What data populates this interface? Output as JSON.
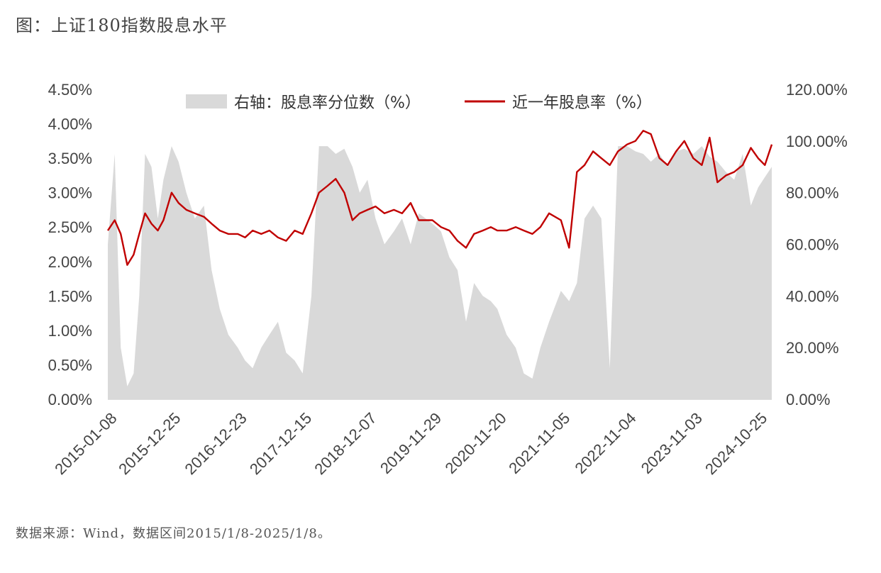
{
  "title": "图：上证180指数股息水平",
  "source": "数据来源：Wind，数据区间2015/1/8-2025/1/8。",
  "colors": {
    "area": "#d9d9d9",
    "line": "#c00000",
    "axis": "#bfbfbf"
  },
  "chart_data": {
    "type": "line",
    "title": "图：上证180指数股息水平",
    "x_start": "2015-01-08",
    "x_end": "2025-01-08",
    "x_ticks": [
      "2015-01-08",
      "2015-12-25",
      "2016-12-23",
      "2017-12-15",
      "2018-12-07",
      "2019-11-29",
      "2020-11-20",
      "2021-11-05",
      "2022-11-04",
      "2023-11-03",
      "2024-10-25"
    ],
    "y_left": {
      "ticks": [
        "0.00%",
        "0.50%",
        "1.00%",
        "1.50%",
        "2.00%",
        "2.50%",
        "3.00%",
        "3.50%",
        "4.00%",
        "4.50%"
      ],
      "ylim": [
        0,
        4.5
      ]
    },
    "y_right": {
      "ticks": [
        "0.00%",
        "20.00%",
        "40.00%",
        "60.00%",
        "80.00%",
        "100.00%",
        "120.00%"
      ],
      "ylim": [
        0,
        120
      ]
    },
    "legend_position": "top",
    "series": [
      {
        "name": "右轴：股息率分位数（%）",
        "kind": "area",
        "axis": "right",
        "x": [
          "2015-01-08",
          "2015-02-15",
          "2015-03-20",
          "2015-04-25",
          "2015-05-30",
          "2015-06-30",
          "2015-08-01",
          "2015-09-05",
          "2015-10-10",
          "2015-11-10",
          "2015-12-25",
          "2016-02-01",
          "2016-03-15",
          "2016-05-01",
          "2016-06-20",
          "2016-08-01",
          "2016-09-15",
          "2016-11-01",
          "2016-12-23",
          "2017-02-01",
          "2017-03-15",
          "2017-05-01",
          "2017-06-15",
          "2017-08-01",
          "2017-09-15",
          "2017-11-01",
          "2017-12-15",
          "2018-02-01",
          "2018-03-15",
          "2018-05-01",
          "2018-06-15",
          "2018-08-01",
          "2018-09-15",
          "2018-10-25",
          "2018-12-07",
          "2019-01-20",
          "2019-03-10",
          "2019-05-01",
          "2019-06-15",
          "2019-08-01",
          "2019-09-15",
          "2019-11-29",
          "2020-01-15",
          "2020-03-01",
          "2020-04-15",
          "2020-06-01",
          "2020-07-15",
          "2020-09-01",
          "2020-10-15",
          "2020-11-20",
          "2021-01-10",
          "2021-03-01",
          "2021-04-15",
          "2021-06-01",
          "2021-07-15",
          "2021-09-01",
          "2021-11-05",
          "2021-12-20",
          "2022-02-01",
          "2022-03-15",
          "2022-05-01",
          "2022-06-15",
          "2022-08-01",
          "2022-09-15",
          "2022-11-04",
          "2022-12-20",
          "2023-02-01",
          "2023-03-15",
          "2023-05-01",
          "2023-06-15",
          "2023-08-01",
          "2023-09-15",
          "2023-11-03",
          "2023-12-20",
          "2024-02-01",
          "2024-03-15",
          "2024-05-01",
          "2024-06-15",
          "2024-08-01",
          "2024-09-15",
          "2024-10-25",
          "2024-12-01",
          "2025-01-08"
        ],
        "values": [
          60,
          95,
          20,
          5,
          10,
          40,
          95,
          90,
          70,
          85,
          98,
          92,
          80,
          70,
          75,
          50,
          35,
          25,
          20,
          15,
          12,
          20,
          25,
          30,
          18,
          15,
          10,
          40,
          98,
          98,
          95,
          97,
          90,
          80,
          85,
          70,
          60,
          65,
          70,
          60,
          72,
          68,
          65,
          55,
          50,
          30,
          45,
          40,
          38,
          35,
          25,
          20,
          10,
          8,
          20,
          30,
          42,
          38,
          45,
          70,
          75,
          70,
          12,
          98,
          98,
          96,
          95,
          92,
          95,
          90,
          96,
          97,
          95,
          98,
          94,
          92,
          88,
          85,
          95,
          75,
          82,
          86,
          90
        ]
      },
      {
        "name": "近一年股息率（%）",
        "kind": "line",
        "axis": "left",
        "x": [
          "2015-01-08",
          "2015-02-15",
          "2015-03-20",
          "2015-04-25",
          "2015-05-30",
          "2015-06-30",
          "2015-08-01",
          "2015-09-05",
          "2015-10-10",
          "2015-11-10",
          "2015-12-25",
          "2016-02-01",
          "2016-03-15",
          "2016-05-01",
          "2016-06-20",
          "2016-08-01",
          "2016-09-15",
          "2016-11-01",
          "2016-12-23",
          "2017-02-01",
          "2017-03-15",
          "2017-05-01",
          "2017-06-15",
          "2017-08-01",
          "2017-09-15",
          "2017-11-01",
          "2017-12-15",
          "2018-02-01",
          "2018-03-15",
          "2018-05-01",
          "2018-06-15",
          "2018-08-01",
          "2018-09-15",
          "2018-10-25",
          "2018-12-07",
          "2019-01-20",
          "2019-03-10",
          "2019-05-01",
          "2019-06-15",
          "2019-08-01",
          "2019-09-15",
          "2019-11-29",
          "2020-01-15",
          "2020-03-01",
          "2020-04-15",
          "2020-06-01",
          "2020-07-15",
          "2020-09-01",
          "2020-10-15",
          "2020-11-20",
          "2021-01-10",
          "2021-03-01",
          "2021-04-15",
          "2021-06-01",
          "2021-07-15",
          "2021-09-01",
          "2021-11-05",
          "2021-12-20",
          "2022-02-01",
          "2022-03-15",
          "2022-05-01",
          "2022-06-15",
          "2022-08-01",
          "2022-09-15",
          "2022-11-04",
          "2022-12-20",
          "2023-02-01",
          "2023-03-15",
          "2023-05-01",
          "2023-06-15",
          "2023-08-01",
          "2023-09-15",
          "2023-11-03",
          "2023-12-20",
          "2024-02-01",
          "2024-03-15",
          "2024-05-01",
          "2024-06-15",
          "2024-08-01",
          "2024-09-15",
          "2024-10-25",
          "2024-12-01",
          "2025-01-08"
        ],
        "values": [
          2.45,
          2.6,
          2.4,
          1.95,
          2.1,
          2.4,
          2.7,
          2.55,
          2.45,
          2.6,
          3.0,
          2.85,
          2.75,
          2.7,
          2.65,
          2.55,
          2.45,
          2.4,
          2.4,
          2.35,
          2.45,
          2.4,
          2.45,
          2.35,
          2.3,
          2.45,
          2.4,
          2.7,
          3.0,
          3.1,
          3.2,
          3.0,
          2.6,
          2.7,
          2.75,
          2.8,
          2.7,
          2.75,
          2.7,
          2.85,
          2.6,
          2.6,
          2.5,
          2.45,
          2.3,
          2.2,
          2.4,
          2.45,
          2.5,
          2.45,
          2.45,
          2.5,
          2.45,
          2.4,
          2.5,
          2.7,
          2.6,
          2.2,
          3.3,
          3.4,
          3.6,
          3.5,
          3.4,
          3.6,
          3.7,
          3.75,
          3.9,
          3.85,
          3.5,
          3.4,
          3.6,
          3.75,
          3.5,
          3.4,
          3.8,
          3.15,
          3.25,
          3.3,
          3.4,
          3.65,
          3.5,
          3.4,
          3.7
        ]
      }
    ]
  }
}
